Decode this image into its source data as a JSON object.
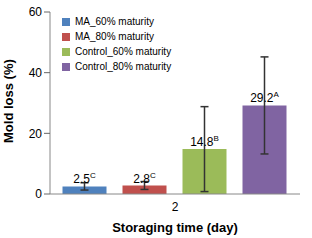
{
  "chart_data": {
    "type": "bar",
    "categories": [
      "2"
    ],
    "x_label": "Storaging time (day)",
    "y_label": "Mold loss (%)",
    "ylim": [
      0,
      60
    ],
    "yticks": [
      0,
      20,
      40,
      60
    ],
    "grid": false,
    "legend": "upper left",
    "data_labels": true,
    "series": [
      {
        "name": "MA_60% maturity",
        "color": "#4f81bd",
        "values": [
          2.5
        ],
        "value_labels": [
          "2.5C"
        ],
        "errors": [
          1.2
        ]
      },
      {
        "name": "MA_80% maturity",
        "color": "#c0504d",
        "values": [
          2.8
        ],
        "value_labels": [
          "2.8C"
        ],
        "errors": [
          1.3
        ]
      },
      {
        "name": "Control_60% maturity",
        "color": "#9bbb59",
        "values": [
          14.8
        ],
        "value_labels": [
          "14.8B"
        ],
        "errors": [
          14
        ]
      },
      {
        "name": "Control_80% maturity",
        "color": "#8064a2",
        "values": [
          29.2
        ],
        "value_labels": [
          "29.2A"
        ],
        "errors": [
          16
        ]
      }
    ]
  }
}
